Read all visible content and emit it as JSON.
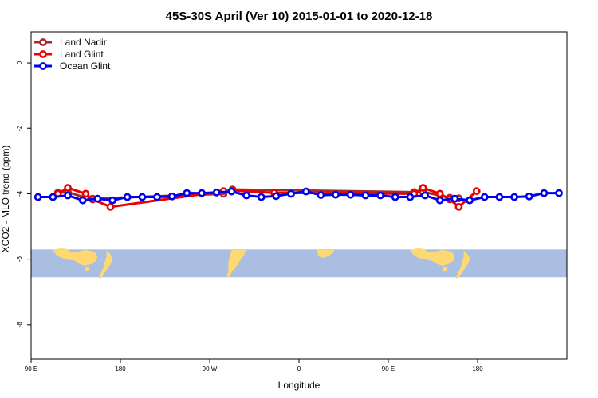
{
  "chart_data": {
    "type": "line",
    "title": "45S-30S April (Ver 10)   2015-01-01 to 2020-12-18",
    "xlabel": "Longitude",
    "ylabel": "XCO2 - MLO trend (ppm)",
    "xlim": [
      90,
      630
    ],
    "ylim": [
      -9.05,
      0.95
    ],
    "xticks": [
      {
        "value": 90,
        "label": "90 E"
      },
      {
        "value": 180,
        "label": "180"
      },
      {
        "value": 270,
        "label": "90 W"
      },
      {
        "value": 360,
        "label": "0"
      },
      {
        "value": 450,
        "label": "90 E"
      },
      {
        "value": 540,
        "label": "180"
      }
    ],
    "yticks": [
      {
        "value": 0,
        "label": "0"
      },
      {
        "value": -2,
        "label": "-2"
      },
      {
        "value": -4,
        "label": "-4"
      },
      {
        "value": -6,
        "label": "-6"
      },
      {
        "value": -8,
        "label": "-8"
      }
    ],
    "grid": false,
    "legend_position": "top-left",
    "map_band": {
      "ymin": -6.55,
      "ymax": -5.7,
      "ocean_color": "#a9bee0",
      "land_color": "#fdd873"
    },
    "series": [
      {
        "name": "Land Nadir",
        "color": "#a52a2a",
        "x": [
          117,
          127,
          145,
          152,
          284,
          293,
          476,
          485,
          512,
          521
        ],
        "y": [
          -3.97,
          -3.95,
          -4.12,
          -4.15,
          -4.0,
          -3.87,
          -3.95,
          -3.94,
          -4.12,
          -4.14
        ]
      },
      {
        "name": "Land Glint",
        "color": "#ee0000",
        "x": [
          117,
          127,
          145,
          152,
          170,
          284,
          293,
          335,
          476,
          485,
          502,
          512,
          521,
          539
        ],
        "y": [
          -4.0,
          -3.82,
          -4.0,
          -4.17,
          -4.4,
          -3.92,
          -3.9,
          -3.97,
          -4.0,
          -3.82,
          -4.0,
          -4.17,
          -4.4,
          -3.92
        ]
      },
      {
        "name": "Ocean Glint",
        "color": "#0000ee",
        "x": [
          97,
          112,
          127,
          142,
          157,
          172,
          187,
          202,
          217,
          232,
          247,
          262,
          277,
          292,
          307,
          322,
          337,
          352,
          367,
          382,
          397,
          412,
          427,
          442,
          457,
          472,
          487,
          502,
          517,
          532,
          547,
          562,
          577,
          592,
          607,
          622
        ],
        "y": [
          -4.1,
          -4.1,
          -4.05,
          -4.2,
          -4.15,
          -4.2,
          -4.1,
          -4.1,
          -4.1,
          -4.08,
          -3.98,
          -3.98,
          -3.96,
          -3.93,
          -4.05,
          -4.1,
          -4.07,
          -4.0,
          -3.93,
          -4.04,
          -4.03,
          -4.03,
          -4.05,
          -4.05,
          -4.1,
          -4.1,
          -4.05,
          -4.2,
          -4.15,
          -4.2,
          -4.1,
          -4.1,
          -4.1,
          -4.08,
          -3.98,
          -3.98
        ]
      }
    ]
  }
}
